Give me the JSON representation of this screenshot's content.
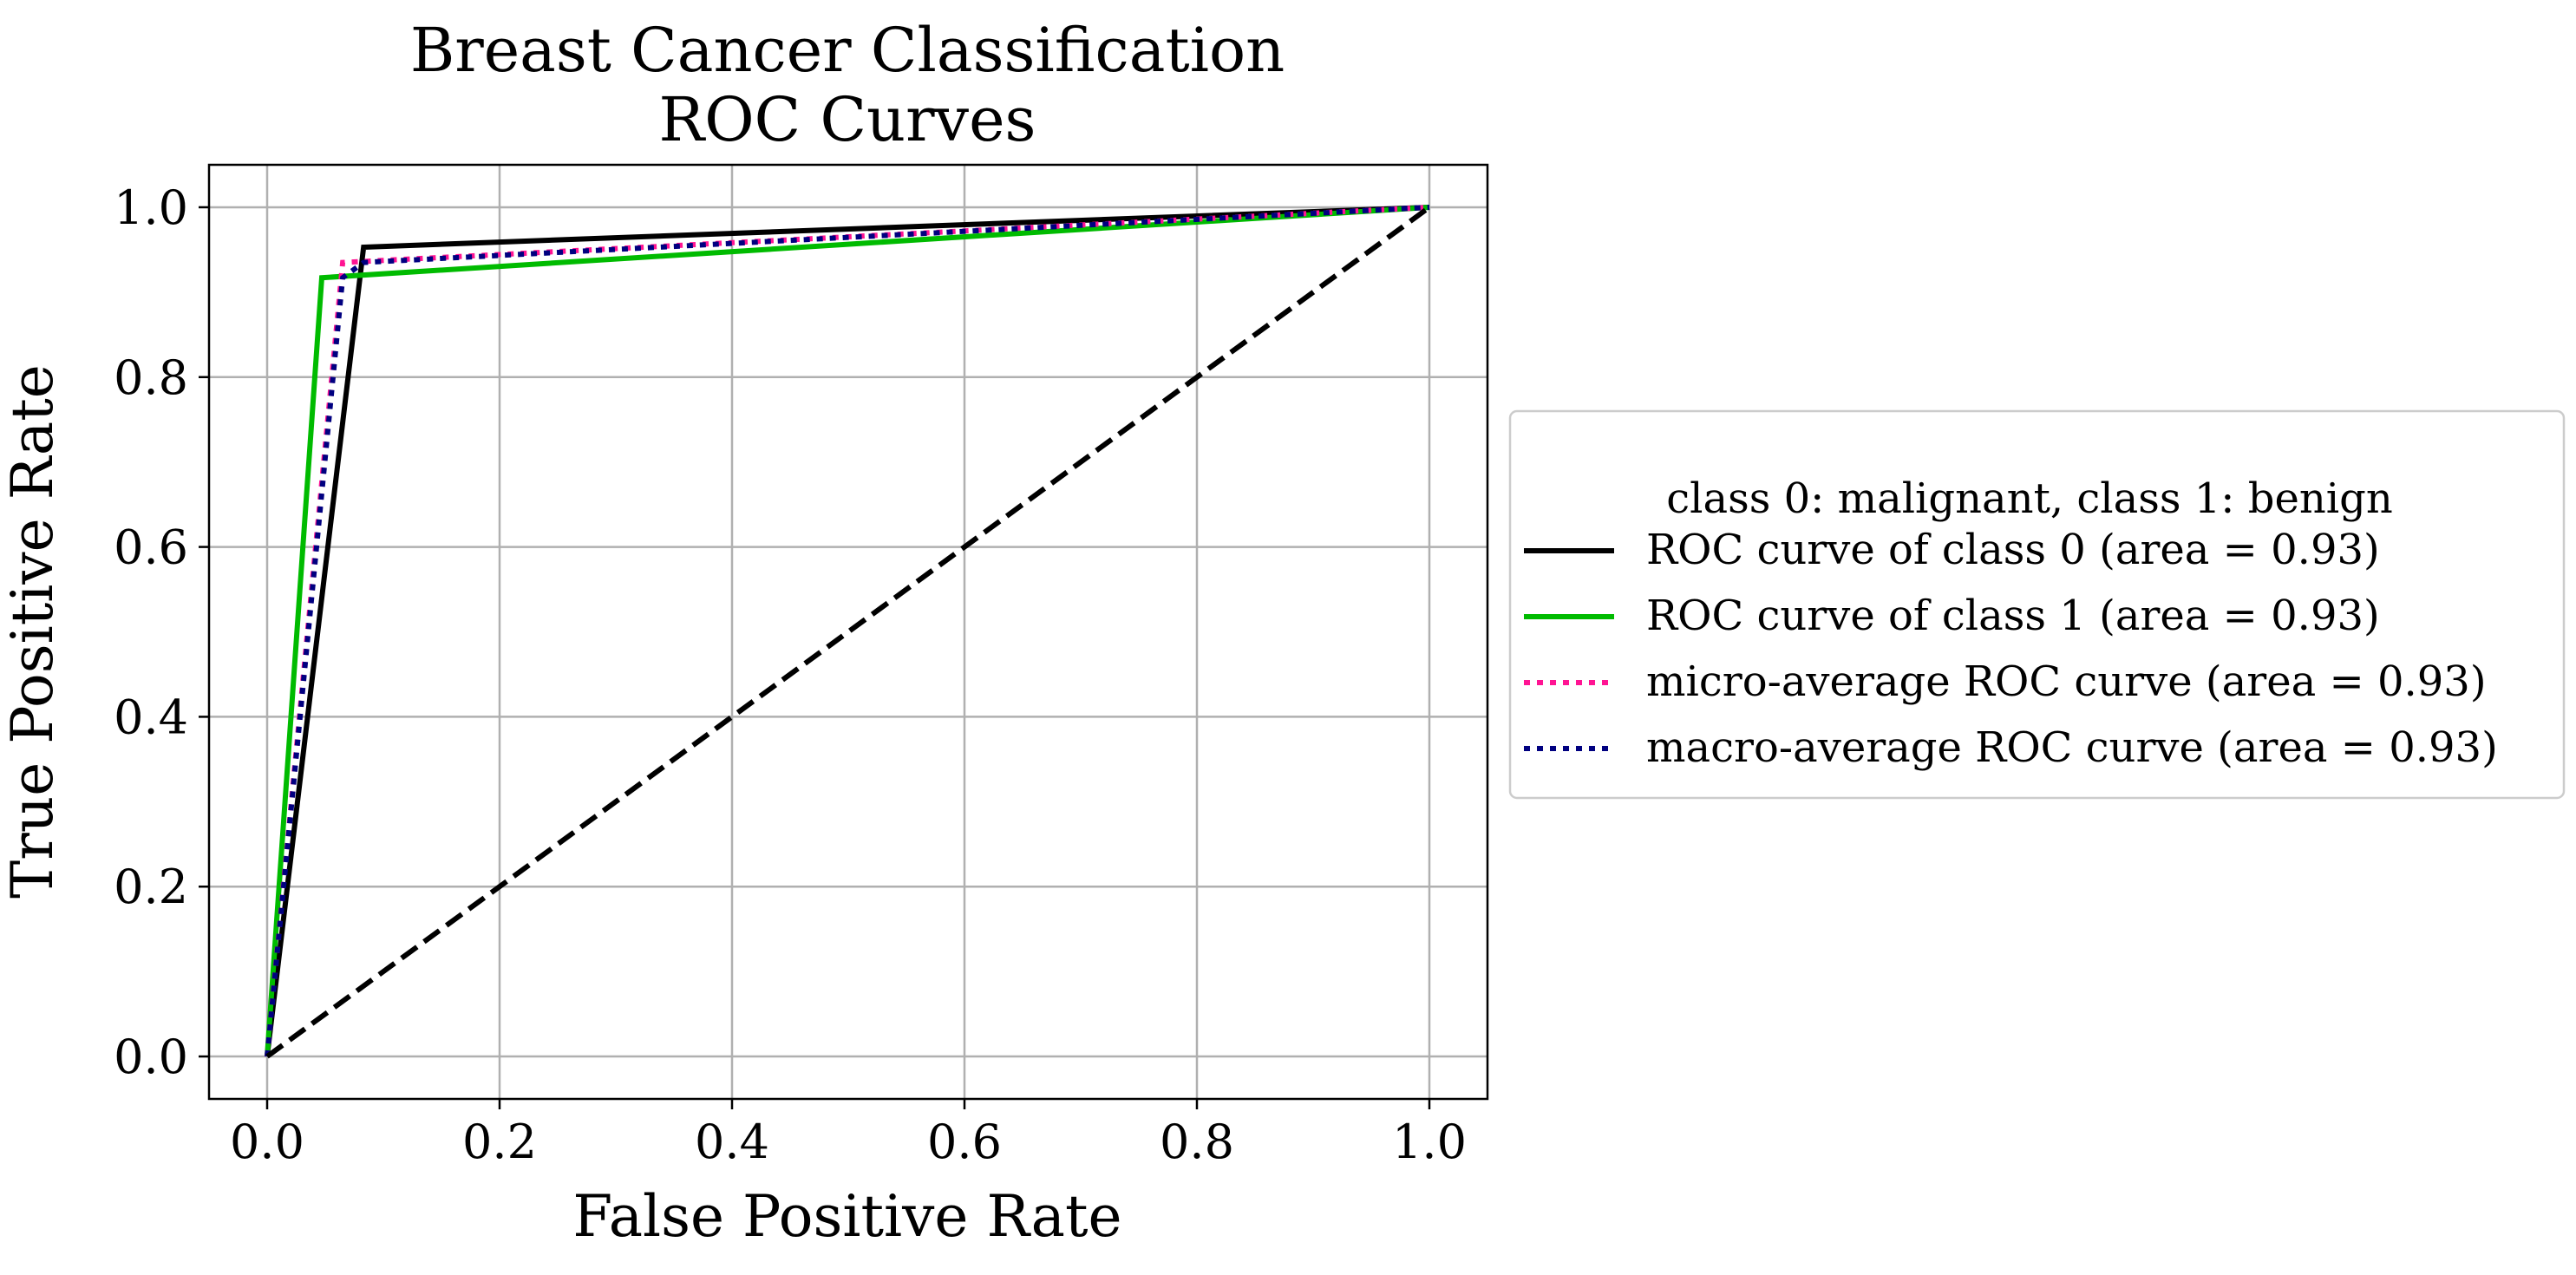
{
  "chart_data": {
    "type": "line",
    "title": "Breast Cancer Classification\nROC Curves",
    "title_lines": [
      "Breast Cancer Classification",
      "ROC Curves"
    ],
    "xlabel": "False Positive Rate",
    "ylabel": "True Positive Rate",
    "xlim": [
      -0.05,
      1.05
    ],
    "ylim": [
      -0.05,
      1.05
    ],
    "xticks": [
      0.0,
      0.2,
      0.4,
      0.6,
      0.8,
      1.0
    ],
    "yticks": [
      0.0,
      0.2,
      0.4,
      0.6,
      0.8,
      1.0
    ],
    "xtick_labels": [
      "0.0",
      "0.2",
      "0.4",
      "0.6",
      "0.8",
      "1.0"
    ],
    "ytick_labels": [
      "0.0",
      "0.2",
      "0.4",
      "0.6",
      "0.8",
      "1.0"
    ],
    "grid": true,
    "legend": {
      "title": "class 0: malignant, class 1: benign",
      "placement": "outside-right"
    },
    "series": [
      {
        "name": "ROC curve of class 0 (area = 0.93)",
        "color": "#000000",
        "style": "solid",
        "x": [
          0.0,
          0.083,
          1.0
        ],
        "y": [
          0.0,
          0.953,
          1.0
        ]
      },
      {
        "name": "ROC curve of class 1 (area = 0.93)",
        "color": "#00bb00",
        "style": "solid",
        "x": [
          0.0,
          0.047,
          1.0
        ],
        "y": [
          0.0,
          0.917,
          1.0
        ]
      },
      {
        "name": "micro-average ROC curve (area = 0.93)",
        "color": "#ff1493",
        "style": "dotted",
        "x": [
          0.0,
          0.065,
          1.0
        ],
        "y": [
          0.0,
          0.935,
          1.0
        ]
      },
      {
        "name": "macro-average ROC curve (area = 0.93)",
        "color": "#000080",
        "style": "dotted",
        "x": [
          0.0,
          0.065,
          0.083,
          1.0
        ],
        "y": [
          0.0,
          0.917,
          0.935,
          1.0
        ]
      }
    ],
    "reference_line": {
      "color": "#000000",
      "style": "dashed",
      "x": [
        0.0,
        1.0
      ],
      "y": [
        0.0,
        1.0
      ]
    }
  }
}
